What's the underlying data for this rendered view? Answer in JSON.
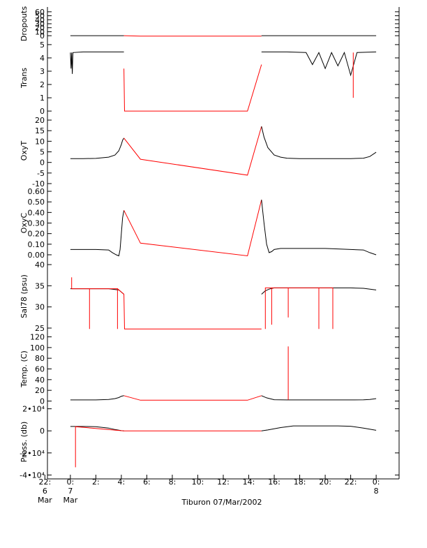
{
  "colors": {
    "measured": "#000000",
    "gap": "#ff0000",
    "axis": "#000000"
  },
  "footer": {
    "caption": "Tiburon 07/Mar/2002"
  },
  "chart_data": [
    {
      "type": "line",
      "ylabel": "Dropouts",
      "ylim": [
        -5,
        65
      ],
      "yticks": [
        0,
        10,
        20,
        30,
        40,
        50,
        60
      ],
      "yticklabels": [
        "0",
        "10",
        "20",
        "30",
        "40",
        "50",
        "60"
      ],
      "series": [
        {
          "color": "#000000",
          "x": [
            0,
            4.2
          ],
          "y": [
            0,
            0
          ]
        },
        {
          "color": "#ff0000",
          "x": [
            4.2,
            5.5,
            15.0
          ],
          "y": [
            0,
            -1,
            -1
          ]
        },
        {
          "color": "#000000",
          "x": [
            15.0,
            24.0
          ],
          "y": [
            0,
            0
          ]
        }
      ]
    },
    {
      "type": "line",
      "ylabel": "Trans",
      "ylim": [
        -0.1,
        5.1
      ],
      "yticks": [
        0,
        1,
        2,
        3,
        4,
        5
      ],
      "yticklabels": [
        "0",
        "1",
        "2",
        "3",
        "4",
        "5"
      ],
      "series": [
        {
          "color": "#000000",
          "x": [
            0,
            0.05,
            0.1,
            0.15,
            0.2,
            1,
            2,
            3,
            4,
            4.2
          ],
          "y": [
            4.4,
            3.2,
            4.4,
            2.8,
            4.4,
            4.45,
            4.45,
            4.45,
            4.45,
            4.45
          ]
        },
        {
          "color": "#ff0000",
          "x": [
            4.2,
            4.25,
            5.5,
            13.9,
            15.0
          ],
          "y": [
            3.2,
            0.0,
            0.0,
            0.0,
            3.5
          ]
        },
        {
          "color": "#000000",
          "x": [
            15.0,
            17.0,
            18.5,
            19.0,
            19.5,
            20.0,
            20.5,
            21.0,
            21.5,
            22.0,
            22.5,
            24.0
          ],
          "y": [
            4.45,
            4.45,
            4.4,
            3.5,
            4.4,
            3.2,
            4.4,
            3.4,
            4.4,
            2.7,
            4.4,
            4.45
          ]
        },
        {
          "color": "#ff0000",
          "x": [
            22.2,
            22.2,
            22.2
          ],
          "y": [
            4.4,
            1.0,
            4.4
          ]
        }
      ]
    },
    {
      "type": "line",
      "ylabel": "OxyT",
      "ylim": [
        -10,
        21
      ],
      "yticks": [
        -10,
        -5,
        0,
        5,
        10,
        15,
        20
      ],
      "yticklabels": [
        "-10",
        "-5",
        "0",
        "5",
        "10",
        "15",
        "20"
      ],
      "series": [
        {
          "color": "#000000",
          "x": [
            0,
            1,
            2,
            3,
            3.5,
            3.8,
            4.0,
            4.1,
            4.2
          ],
          "y": [
            1.8,
            1.8,
            1.9,
            2.5,
            3.5,
            5.5,
            8.5,
            10.5,
            11.5
          ]
        },
        {
          "color": "#ff0000",
          "x": [
            4.2,
            5.5,
            13.9,
            15.0
          ],
          "y": [
            11.5,
            1.5,
            -6,
            17
          ]
        },
        {
          "color": "#000000",
          "x": [
            15.0,
            15.2,
            15.5,
            16.0,
            16.5,
            17,
            18,
            20,
            22,
            23,
            23.5,
            24.0
          ],
          "y": [
            17,
            12,
            7,
            3.5,
            2.5,
            2.0,
            1.8,
            1.8,
            1.8,
            2.0,
            2.8,
            4.8
          ]
        }
      ]
    },
    {
      "type": "line",
      "ylabel": "OxyC",
      "ylim": [
        -0.02,
        0.62
      ],
      "yticks": [
        0.0,
        0.1,
        0.2,
        0.3,
        0.4,
        0.5,
        0.6
      ],
      "yticklabels": [
        "0.00",
        "0.10",
        "0.20",
        "0.30",
        "0.40",
        "0.50",
        "0.60"
      ],
      "series": [
        {
          "color": "#000000",
          "x": [
            0,
            1,
            2,
            3,
            3.3,
            3.6,
            3.8,
            3.9,
            4.0,
            4.1,
            4.2
          ],
          "y": [
            0.05,
            0.05,
            0.05,
            0.045,
            0.02,
            0.0,
            -0.01,
            0.05,
            0.2,
            0.35,
            0.42
          ]
        },
        {
          "color": "#ff0000",
          "x": [
            4.2,
            5.5,
            13.9,
            15.0
          ],
          "y": [
            0.42,
            0.11,
            -0.01,
            0.52
          ]
        },
        {
          "color": "#000000",
          "x": [
            15.0,
            15.2,
            15.4,
            15.6,
            15.8,
            16.0,
            16.5,
            17,
            20,
            22,
            23,
            23.5,
            24.0
          ],
          "y": [
            0.52,
            0.3,
            0.1,
            0.02,
            0.03,
            0.05,
            0.06,
            0.06,
            0.06,
            0.05,
            0.045,
            0.02,
            0.0
          ]
        }
      ]
    },
    {
      "type": "line",
      "ylabel": "Sal78 (psu)",
      "ylim": [
        24.5,
        40.5
      ],
      "yticks": [
        25,
        30,
        35,
        40
      ],
      "yticklabels": [
        "25",
        "30",
        "35",
        "40"
      ],
      "series": [
        {
          "color": "#000000",
          "x": [
            0,
            1,
            2,
            3,
            3.8,
            4.0,
            4.2
          ],
          "y": [
            34.3,
            34.3,
            34.3,
            34.3,
            34.0,
            33.5,
            33.0
          ]
        },
        {
          "color": "#ff0000",
          "x": [
            0.1,
            0.1,
            0.1,
            1.5,
            1.5,
            1.5,
            3.7,
            3.7,
            3.7,
            4.2,
            4.25,
            15.0
          ],
          "y": [
            34.3,
            37.0,
            34.3,
            34.3,
            24.8,
            34.3,
            34.3,
            24.8,
            34.3,
            33.0,
            24.8,
            24.8
          ]
        },
        {
          "color": "#000000",
          "x": [
            15.0,
            15.3,
            15.6,
            16,
            18,
            20,
            22,
            23,
            24.0
          ],
          "y": [
            33.0,
            33.8,
            34.2,
            34.5,
            34.5,
            34.5,
            34.5,
            34.4,
            34.0
          ]
        },
        {
          "color": "#ff0000",
          "x": [
            15.3,
            15.3,
            15.3,
            15.8,
            15.8,
            15.8,
            17.1,
            17.1,
            17.1,
            19.5,
            19.5,
            19.5,
            20.6,
            20.6,
            20.6
          ],
          "y": [
            34.5,
            24.8,
            34.5,
            34.5,
            25.8,
            34.5,
            34.5,
            27.5,
            34.5,
            34.5,
            24.8,
            34.5,
            34.5,
            24.8,
            34.5
          ]
        }
      ]
    },
    {
      "type": "line",
      "ylabel": "Temp. (C)",
      "ylim": [
        -2,
        122
      ],
      "yticks": [
        0,
        20,
        40,
        60,
        80,
        100,
        120
      ],
      "yticklabels": [
        "0",
        "20",
        "40",
        "60",
        "80",
        "100",
        "120"
      ],
      "series": [
        {
          "color": "#000000",
          "x": [
            0,
            1,
            2,
            3,
            3.5,
            3.8,
            4.0,
            4.2
          ],
          "y": [
            2.0,
            2.0,
            2.1,
            3.0,
            4.5,
            6.5,
            9.0,
            10.0
          ]
        },
        {
          "color": "#ff0000",
          "x": [
            4.2,
            5.5,
            13.9,
            15.0
          ],
          "y": [
            10.0,
            1.5,
            1.5,
            10.0
          ]
        },
        {
          "color": "#000000",
          "x": [
            15.0,
            15.4,
            16.0,
            17,
            20,
            22,
            23,
            23.5,
            24.0
          ],
          "y": [
            10.0,
            6.0,
            2.5,
            2.0,
            2.0,
            2.0,
            2.2,
            3.0,
            4.5
          ]
        },
        {
          "color": "#ff0000",
          "x": [
            17.1,
            17.1,
            17.1
          ],
          "y": [
            2.0,
            102,
            2.0
          ]
        }
      ]
    },
    {
      "type": "line",
      "ylabel": "Press. (db)",
      "ylim": [
        -41000,
        21000
      ],
      "yticks": [
        -40000,
        -20000,
        0,
        20000
      ],
      "yticklabels": [
        "-4•10⁴",
        "-2•10⁴",
        "0",
        "2•10⁴"
      ],
      "series": [
        {
          "color": "#000000",
          "x": [
            0,
            1,
            2,
            3,
            3.5,
            4.0,
            4.2
          ],
          "y": [
            4000,
            4000,
            3800,
            2500,
            1200,
            200,
            0
          ]
        },
        {
          "color": "#ff0000",
          "x": [
            0.4,
            0.4,
            0.4,
            4.2,
            5.5,
            14.0,
            15.0
          ],
          "y": [
            3800,
            -33000,
            3800,
            0,
            0,
            0,
            0
          ]
        },
        {
          "color": "#000000",
          "x": [
            15.0,
            15.5,
            16.5,
            17.5,
            19,
            21,
            22,
            23,
            24.0
          ],
          "y": [
            0,
            800,
            3000,
            4500,
            4500,
            4500,
            4200,
            2500,
            500
          ]
        }
      ]
    }
  ],
  "xaxis": {
    "xlim": [
      -1.8,
      25.8
    ],
    "ticks": [
      {
        "x": -2,
        "label": "22:",
        "sub": "6",
        "sub2": "Mar"
      },
      {
        "x": 0,
        "label": "0:",
        "sub": "7",
        "sub2": "Mar"
      },
      {
        "x": 2,
        "label": "2:",
        "sub": "",
        "sub2": ""
      },
      {
        "x": 4,
        "label": "4:",
        "sub": "",
        "sub2": ""
      },
      {
        "x": 6,
        "label": "6:",
        "sub": "",
        "sub2": ""
      },
      {
        "x": 8,
        "label": "8:",
        "sub": "",
        "sub2": ""
      },
      {
        "x": 10,
        "label": "10:",
        "sub": "",
        "sub2": ""
      },
      {
        "x": 12,
        "label": "12:",
        "sub": "",
        "sub2": ""
      },
      {
        "x": 14,
        "label": "14:",
        "sub": "",
        "sub2": ""
      },
      {
        "x": 16,
        "label": "16:",
        "sub": "",
        "sub2": ""
      },
      {
        "x": 18,
        "label": "18:",
        "sub": "",
        "sub2": ""
      },
      {
        "x": 20,
        "label": "20:",
        "sub": "",
        "sub2": ""
      },
      {
        "x": 22,
        "label": "22:",
        "sub": "",
        "sub2": ""
      },
      {
        "x": 24,
        "label": "0:",
        "sub": "8",
        "sub2": ""
      }
    ]
  }
}
